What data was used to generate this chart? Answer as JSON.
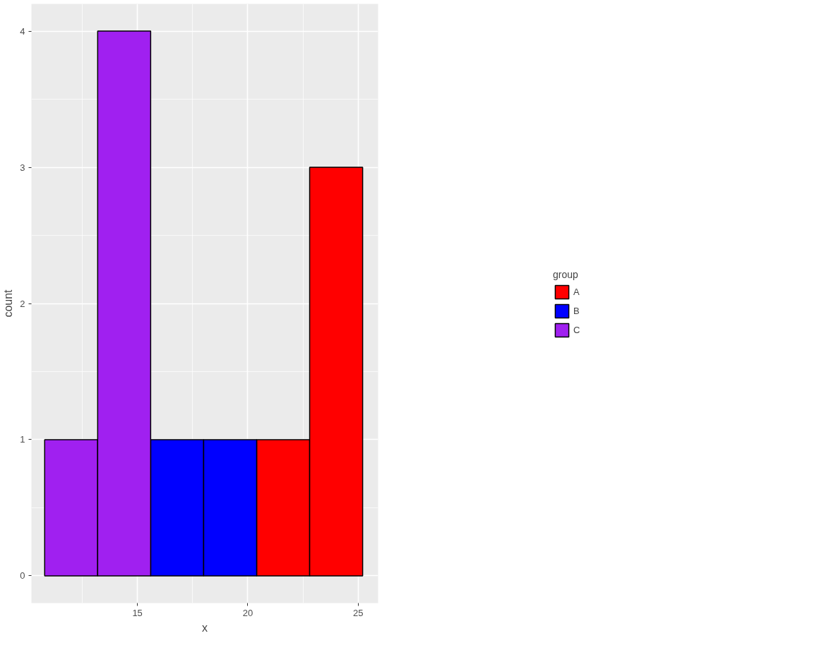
{
  "chart_data": {
    "type": "histogram",
    "xlabel": "x",
    "ylabel": "count",
    "legend_title": "group",
    "legend": "right",
    "grid": true,
    "xlim": [
      10.2,
      25.9
    ],
    "xticks": [
      15,
      20,
      25
    ],
    "ylim": [
      -0.2,
      4.2
    ],
    "yticks": [
      0,
      1,
      2,
      3,
      4
    ],
    "bins": [
      10.8,
      13.2,
      15.6,
      18.0,
      20.4,
      22.8,
      25.2
    ],
    "series": [
      {
        "name": "A",
        "color": "#ff0000",
        "values": [
          null,
          null,
          null,
          null,
          1,
          3
        ]
      },
      {
        "name": "B",
        "color": "#0000ff",
        "values": [
          null,
          null,
          1,
          1,
          null,
          null
        ]
      },
      {
        "name": "C",
        "color": "#a020f0",
        "values": [
          1,
          4,
          null,
          null,
          null,
          null
        ]
      }
    ]
  }
}
